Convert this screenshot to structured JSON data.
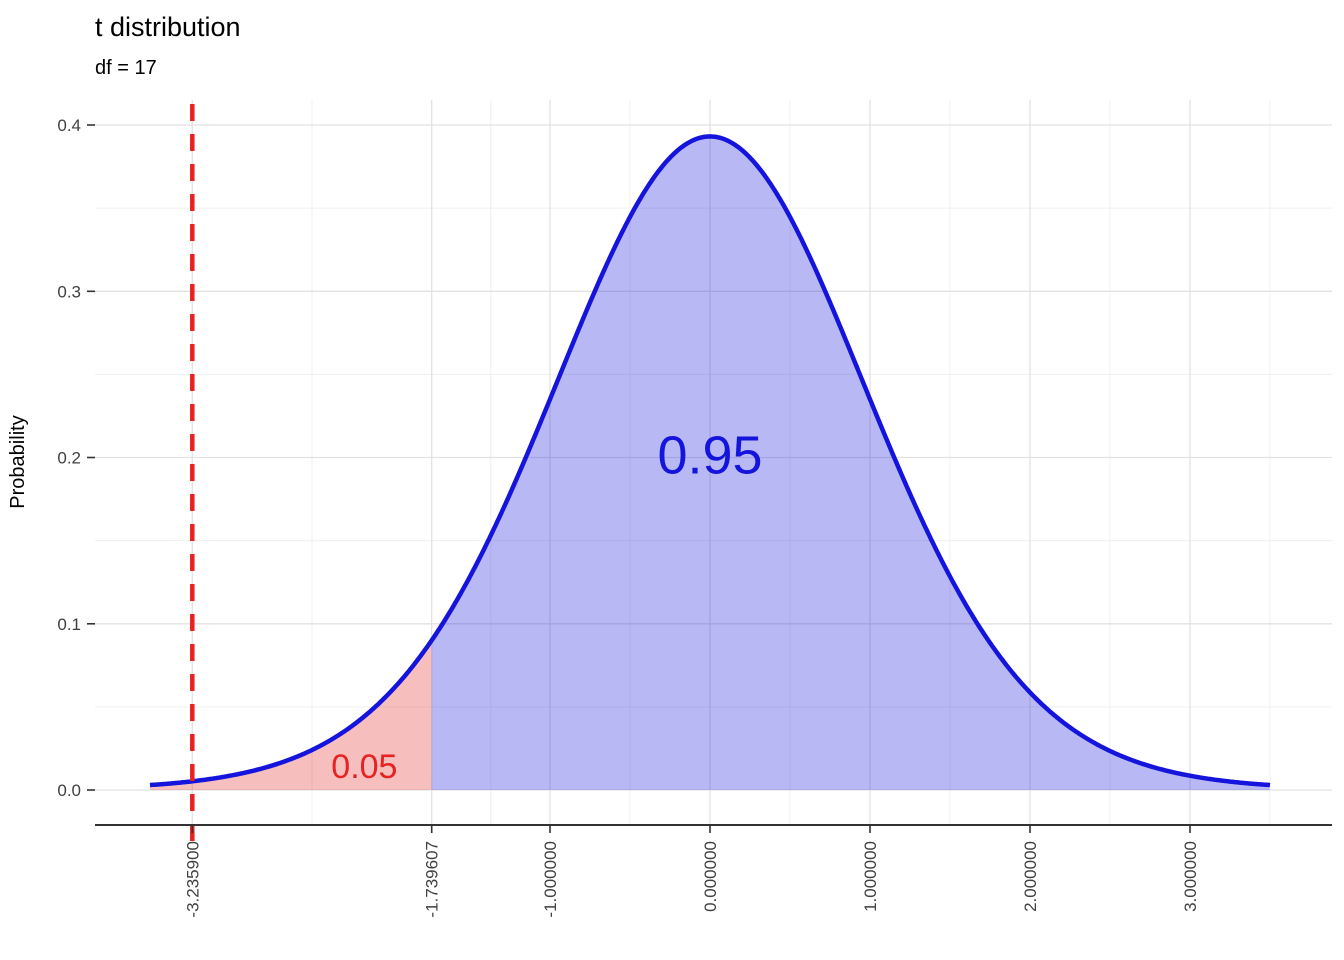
{
  "chart_data": {
    "type": "area",
    "title": "t distribution",
    "subtitle": "df = 17",
    "xlabel": "",
    "ylabel": "Probability",
    "distribution": "t",
    "df": 17,
    "critical_value": -1.739607,
    "reference_line_x": -3.2359,
    "lower_tail_area": 0.05,
    "upper_area": 0.95,
    "curve_range": [
      -3.5,
      3.5
    ],
    "ylim": [
      0,
      0.4
    ],
    "x_ticks": [
      {
        "value": -3.2359,
        "label": "-3.235900"
      },
      {
        "value": -1.739607,
        "label": "-1.739607"
      },
      {
        "value": -1.0,
        "label": "-1.000000"
      },
      {
        "value": 0.0,
        "label": "0.000000"
      },
      {
        "value": 1.0,
        "label": "1.000000"
      },
      {
        "value": 2.0,
        "label": "2.000000"
      },
      {
        "value": 3.0,
        "label": "3.000000"
      }
    ],
    "y_ticks": [
      {
        "value": 0.0,
        "label": "0.0"
      },
      {
        "value": 0.1,
        "label": "0.1"
      },
      {
        "value": 0.2,
        "label": "0.2"
      },
      {
        "value": 0.3,
        "label": "0.3"
      },
      {
        "value": 0.4,
        "label": "0.4"
      }
    ],
    "y_minor": [
      0.05,
      0.15,
      0.25,
      0.35
    ],
    "annotations": [
      {
        "text": "0.95",
        "x": 0.0,
        "y": 0.199,
        "color": "#1414dc",
        "font_size": 54
      },
      {
        "text": "0.05",
        "x": -2.16,
        "y": 0.0125,
        "color": "#e62222",
        "font_size": 34
      }
    ],
    "colors": {
      "curve": "#1414dc",
      "fill_upper": "rgba(20,20,220,0.30)",
      "fill_lower": "rgba(230,40,40,0.30)",
      "reference_line": "#e62222",
      "grid_major": "#e2e2e2",
      "grid_minor": "#f0f0f0",
      "axis": "#333333",
      "tick_text": "#404040"
    },
    "legend": "none",
    "grid": "on"
  }
}
